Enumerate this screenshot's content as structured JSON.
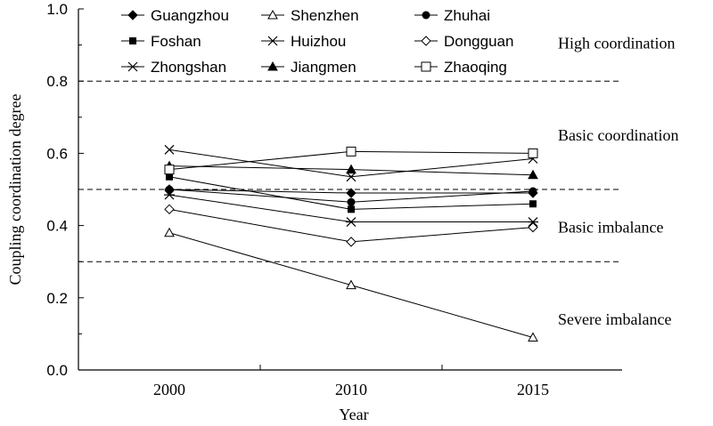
{
  "chart_data": {
    "type": "line",
    "title": "",
    "xlabel": "Year",
    "ylabel": "Coupling coordination degree",
    "categories": [
      "2000",
      "2010",
      "2015"
    ],
    "ylim": [
      0,
      1.0
    ],
    "yticks": [
      "0.0",
      "0.2",
      "0.4",
      "0.6",
      "0.8",
      "1.0"
    ],
    "grid": false,
    "legend_position": "top",
    "thresholds": [
      {
        "value": 0.3
      },
      {
        "value": 0.5
      },
      {
        "value": 0.8
      }
    ],
    "zones": [
      {
        "label": "High coordination",
        "center": 0.905
      },
      {
        "label": "Basic coordination",
        "center": 0.65
      },
      {
        "label": "Basic imbalance",
        "center": 0.395
      },
      {
        "label": "Severe imbalance",
        "center": 0.14
      }
    ],
    "series": [
      {
        "name": "Guangzhou",
        "marker": "diamond-filled",
        "values": [
          0.5,
          0.49,
          0.49
        ]
      },
      {
        "name": "Shenzhen",
        "marker": "triangle-open",
        "values": [
          0.38,
          0.235,
          0.09
        ]
      },
      {
        "name": "Zhuhai",
        "marker": "circle-filled",
        "values": [
          0.5,
          0.465,
          0.495
        ]
      },
      {
        "name": "Foshan",
        "marker": "square-filled",
        "values": [
          0.535,
          0.445,
          0.46
        ]
      },
      {
        "name": "Huizhou",
        "marker": "x",
        "values": [
          0.61,
          0.535,
          0.585
        ]
      },
      {
        "name": "Dongguan",
        "marker": "diamond-open",
        "values": [
          0.445,
          0.355,
          0.395
        ]
      },
      {
        "name": "Zhongshan",
        "marker": "asterisk",
        "values": [
          0.485,
          0.41,
          0.41
        ]
      },
      {
        "name": "Jiangmen",
        "marker": "triangle-filled",
        "values": [
          0.565,
          0.555,
          0.54
        ]
      },
      {
        "name": "Zhaoqing",
        "marker": "square-open",
        "values": [
          0.555,
          0.605,
          0.6
        ]
      }
    ]
  }
}
